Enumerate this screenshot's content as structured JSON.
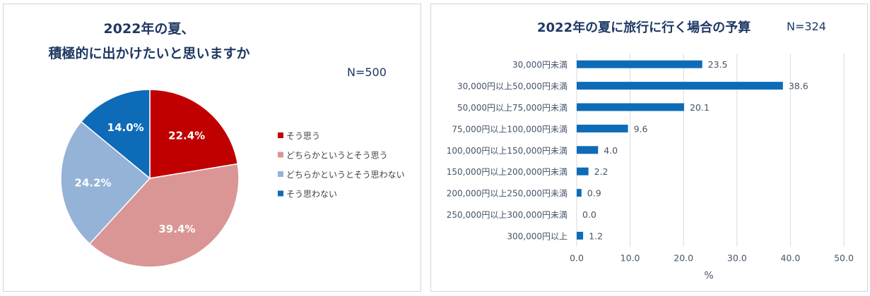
{
  "colors": {
    "title": "#1f3864",
    "axis_text": "#44546a",
    "grid": "#d9d9d9",
    "bar": "#0e6bb8",
    "pie": [
      "#c00000",
      "#da9694",
      "#95b3d7",
      "#0e6bb8"
    ]
  },
  "chart_data": [
    {
      "type": "pie",
      "title": "2022年の夏、\n積極的に出かけたいと思いますか",
      "title_lines": [
        "2022年の夏、",
        "積極的に出かけたいと思いますか"
      ],
      "n_label": "N=500",
      "legend_position": "right",
      "slices": [
        {
          "label": "そう思う",
          "value": 22.4,
          "display": "22.4%"
        },
        {
          "label": "どちらかというとそう思う",
          "value": 39.4,
          "display": "39.4%"
        },
        {
          "label": "どちらかというとそう思わない",
          "value": 24.2,
          "display": "24.2%"
        },
        {
          "label": "そう思わない",
          "value": 14.0,
          "display": "14.0%"
        }
      ]
    },
    {
      "type": "bar",
      "orientation": "horizontal",
      "title": "2022年の夏に旅行に行く場合の予算",
      "n_label": "N=324",
      "xlabel": "%",
      "xlim": [
        0,
        50
      ],
      "xticks": [
        "0.0",
        "10.0",
        "20.0",
        "30.0",
        "40.0",
        "50.0"
      ],
      "grid": "vertical",
      "categories": [
        "30,000円未満",
        "30,000円以上50,000円未満",
        "50,000円以上75,000円未満",
        "75,000円以上100,000円未満",
        "100,000円以上150,000円未満",
        "150,000円以上200,000円未満",
        "200,000円以上250,000円未満",
        "250,000円以上300,000円未満",
        "300,000円以上"
      ],
      "values": [
        23.5,
        38.6,
        20.1,
        9.6,
        4.0,
        2.2,
        0.9,
        0.0,
        1.2
      ],
      "value_labels": [
        "23.5",
        "38.6",
        "20.1",
        "9.6",
        "4.0",
        "2.2",
        "0.9",
        "0.0",
        "1.2"
      ]
    }
  ]
}
